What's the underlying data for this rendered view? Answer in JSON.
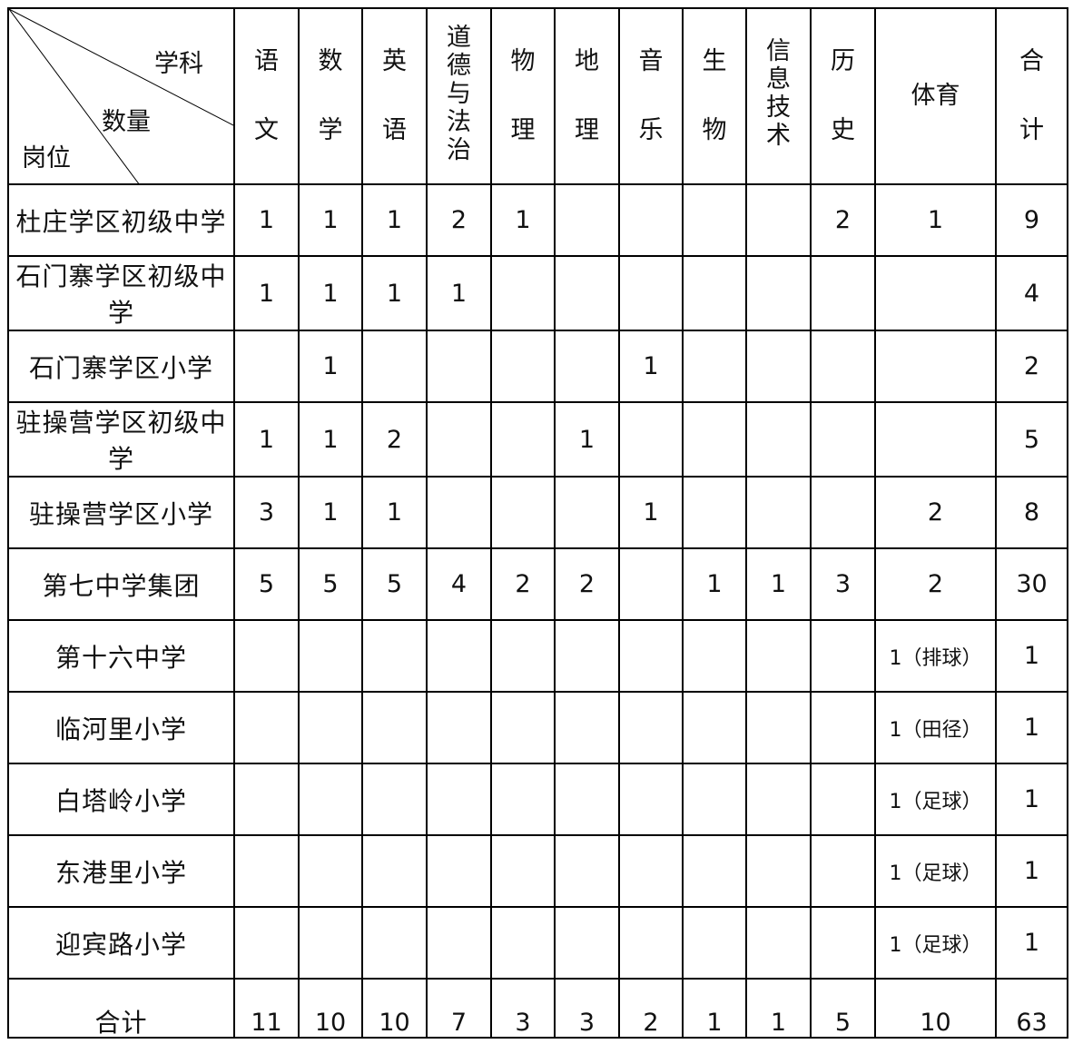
{
  "corner": {
    "top": "学科",
    "middle": "数量",
    "bottom": "岗位"
  },
  "columns": [
    {
      "chars": [
        "语",
        "文"
      ],
      "style": "spaced"
    },
    {
      "chars": [
        "数",
        "学"
      ],
      "style": "spaced"
    },
    {
      "chars": [
        "英",
        "语"
      ],
      "style": "spaced"
    },
    {
      "chars": [
        "道",
        "德",
        "与",
        "法",
        "治"
      ],
      "style": "tight"
    },
    {
      "chars": [
        "物",
        "理"
      ],
      "style": "spaced"
    },
    {
      "chars": [
        "地",
        "理"
      ],
      "style": "spaced"
    },
    {
      "chars": [
        "音",
        "乐"
      ],
      "style": "spaced"
    },
    {
      "chars": [
        "生",
        "物"
      ],
      "style": "spaced"
    },
    {
      "chars": [
        "信",
        "息",
        "技",
        "术"
      ],
      "style": "tight"
    },
    {
      "chars": [
        "历",
        "史"
      ],
      "style": "spaced"
    },
    {
      "chars": [
        "体育"
      ],
      "style": "single"
    },
    {
      "chars": [
        "合",
        "计"
      ],
      "style": "spaced"
    }
  ],
  "rows": [
    {
      "name": "杜庄学区初级中学",
      "cells": [
        "1",
        "1",
        "1",
        "2",
        "1",
        "",
        "",
        "",
        "",
        "2",
        "1",
        "9"
      ]
    },
    {
      "name": "石门寨学区初级中学",
      "cells": [
        "1",
        "1",
        "1",
        "1",
        "",
        "",
        "",
        "",
        "",
        "",
        "",
        "4"
      ]
    },
    {
      "name": "石门寨学区小学",
      "cells": [
        "",
        "1",
        "",
        "",
        "",
        "",
        "1",
        "",
        "",
        "",
        "",
        "2"
      ]
    },
    {
      "name": "驻操营学区初级中学",
      "cells": [
        "1",
        "1",
        "2",
        "",
        "",
        "1",
        "",
        "",
        "",
        "",
        "",
        "5"
      ]
    },
    {
      "name": "驻操营学区小学",
      "cells": [
        "3",
        "1",
        "1",
        "",
        "",
        "",
        "1",
        "",
        "",
        "",
        "2",
        "8"
      ]
    },
    {
      "name": "第七中学集团",
      "cells": [
        "5",
        "5",
        "5",
        "4",
        "2",
        "2",
        "",
        "1",
        "1",
        "3",
        "2",
        "30"
      ]
    },
    {
      "name": "第十六中学",
      "cells": [
        "",
        "",
        "",
        "",
        "",
        "",
        "",
        "",
        "",
        "",
        "1（排球）",
        "1"
      ]
    },
    {
      "name": "临河里小学",
      "cells": [
        "",
        "",
        "",
        "",
        "",
        "",
        "",
        "",
        "",
        "",
        "1（田径）",
        "1"
      ]
    },
    {
      "name": "白塔岭小学",
      "cells": [
        "",
        "",
        "",
        "",
        "",
        "",
        "",
        "",
        "",
        "",
        "1（足球）",
        "1"
      ]
    },
    {
      "name": "东港里小学",
      "cells": [
        "",
        "",
        "",
        "",
        "",
        "",
        "",
        "",
        "",
        "",
        "1（足球）",
        "1"
      ]
    },
    {
      "name": "迎宾路小学",
      "cells": [
        "",
        "",
        "",
        "",
        "",
        "",
        "",
        "",
        "",
        "",
        "1（足球）",
        "1"
      ]
    }
  ],
  "total": {
    "name": "合计",
    "cells": [
      "11",
      "10",
      "10",
      "7",
      "3",
      "3",
      "2",
      "1",
      "1",
      "5",
      "10",
      "63"
    ]
  }
}
